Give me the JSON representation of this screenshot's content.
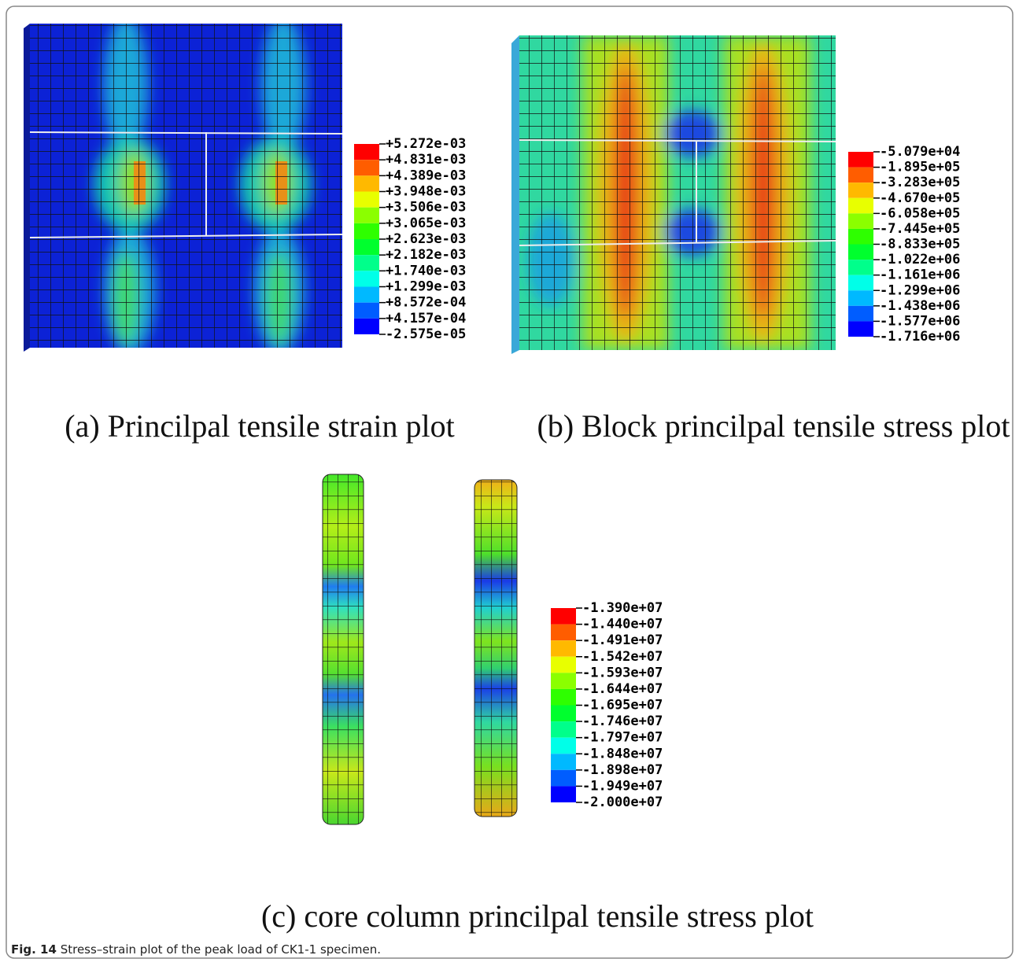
{
  "panels": [
    {
      "legend": [
        "+5.272e-03",
        "+4.831e-03",
        "+4.389e-03",
        "+3.948e-03",
        "+3.506e-03",
        "+3.065e-03",
        "+2.623e-03",
        "+2.182e-03",
        "+1.740e-03",
        "+1.299e-03",
        "+8.572e-04",
        "+4.157e-04",
        "-2.575e-05"
      ],
      "caption": "(a) Princilpal tensile strain plot"
    },
    {
      "legend": [
        "-5.079e+04",
        "-1.895e+05",
        "-3.283e+05",
        "-4.670e+05",
        "-6.058e+05",
        "-7.445e+05",
        "-8.833e+05",
        "-1.022e+06",
        "-1.161e+06",
        "-1.299e+06",
        "-1.438e+06",
        "-1.577e+06",
        "-1.716e+06"
      ],
      "caption": "(b) Block princilpal tensile stress plot"
    },
    {
      "legend": [
        "-1.390e+07",
        "-1.440e+07",
        "-1.491e+07",
        "-1.542e+07",
        "-1.593e+07",
        "-1.644e+07",
        "-1.695e+07",
        "-1.746e+07",
        "-1.797e+07",
        "-1.848e+07",
        "-1.898e+07",
        "-1.949e+07",
        "-2.000e+07"
      ],
      "caption": "(c) core column princilpal tensile stress plot"
    }
  ],
  "figure_caption": {
    "label": "Fig. 14",
    "text": "Stress–strain plot of the peak load of CK1-1 specimen."
  }
}
